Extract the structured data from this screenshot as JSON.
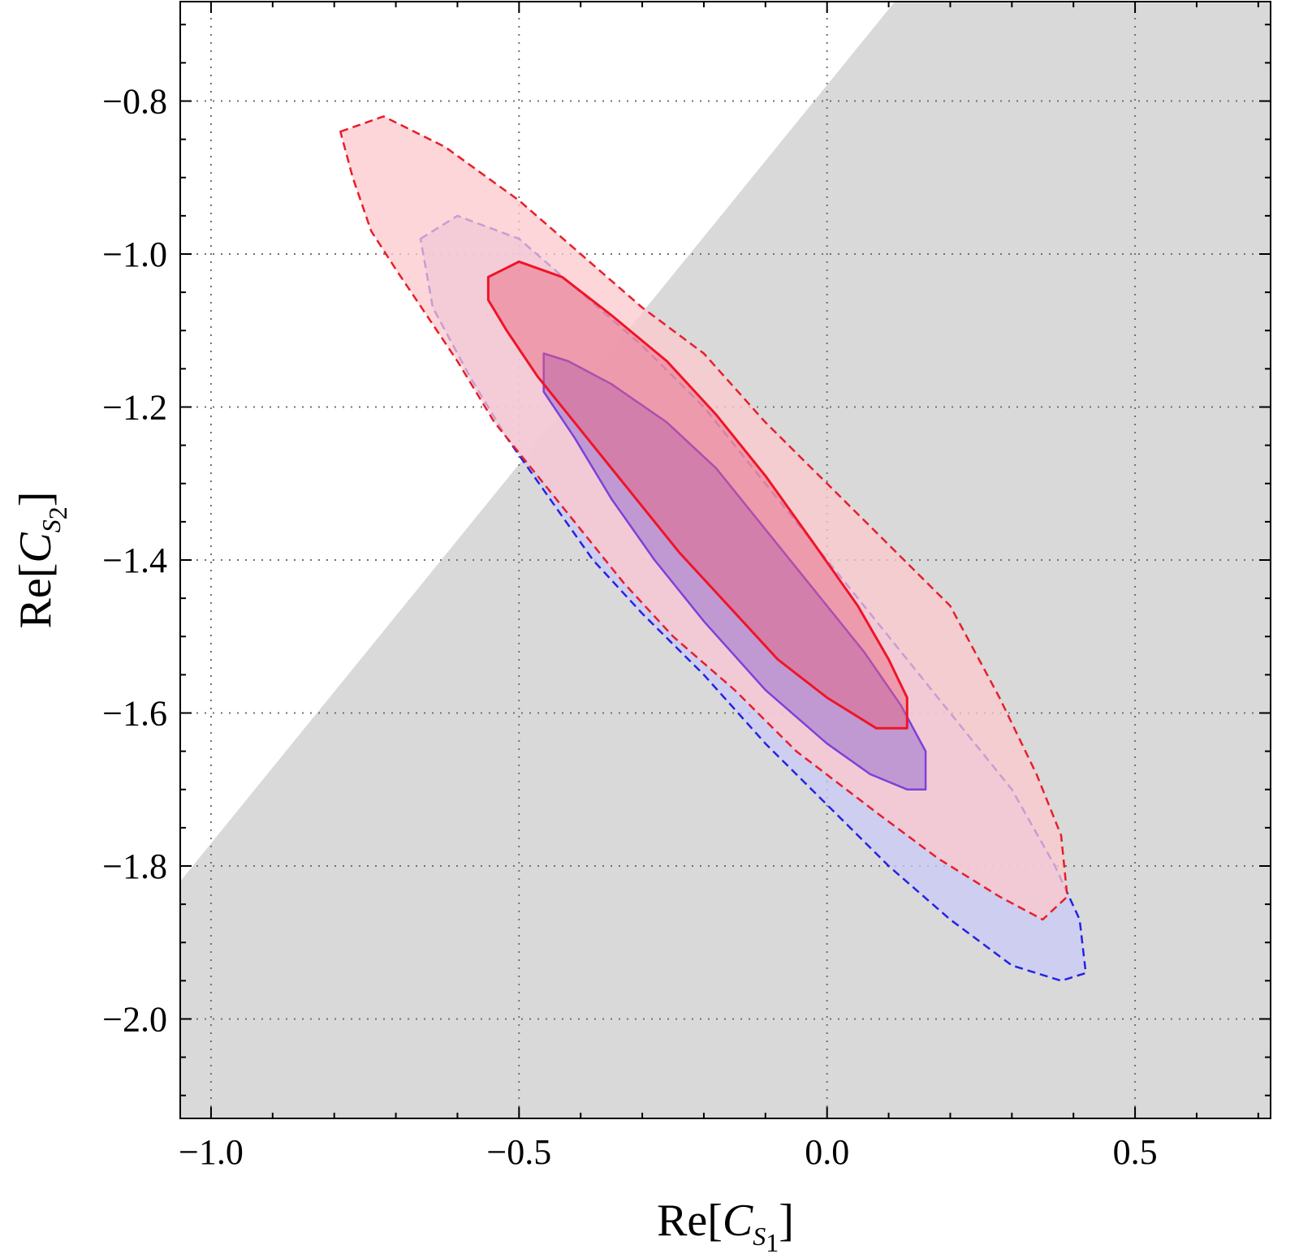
{
  "chart_data": {
    "type": "contour",
    "xlabel": {
      "prefix": "Re[",
      "symbol": "C",
      "sub_letter": "S",
      "sub_index": "1",
      "suffix": "]"
    },
    "ylabel": {
      "prefix": "Re[",
      "symbol": "C",
      "sub_letter": "S",
      "sub_index": "2",
      "suffix": "]"
    },
    "xlim": [
      -1.05,
      0.72
    ],
    "ylim": [
      -2.13,
      -0.67
    ],
    "x_ticks": [
      {
        "value": -1.0,
        "label": "−1.0"
      },
      {
        "value": -0.5,
        "label": "−0.5"
      },
      {
        "value": 0.0,
        "label": "0.0"
      },
      {
        "value": 0.5,
        "label": "0.5"
      }
    ],
    "y_ticks": [
      {
        "value": -0.8,
        "label": "−0.8"
      },
      {
        "value": -1.0,
        "label": "−1.0"
      },
      {
        "value": -1.2,
        "label": "−1.2"
      },
      {
        "value": -1.4,
        "label": "−1.4"
      },
      {
        "value": -1.6,
        "label": "−1.6"
      },
      {
        "value": -1.8,
        "label": "−1.8"
      },
      {
        "value": -2.0,
        "label": "−2.0"
      }
    ],
    "grid": true,
    "excluded_region": {
      "color": "#d9d9d9",
      "points": [
        [
          -1.05,
          -1.82
        ],
        [
          0.11,
          -0.67
        ],
        [
          0.72,
          -0.67
        ],
        [
          0.72,
          -2.13
        ],
        [
          -1.05,
          -2.13
        ]
      ]
    },
    "regions": [
      {
        "id": "blue-outer",
        "fill": "#c9c9f7",
        "fill_opacity": 0.75,
        "stroke": "#2323e6",
        "dash": true,
        "stroke_width": 2.5,
        "points": [
          [
            -0.66,
            -0.98
          ],
          [
            -0.6,
            -0.95
          ],
          [
            -0.5,
            -0.98
          ],
          [
            -0.4,
            -1.05
          ],
          [
            -0.3,
            -1.12
          ],
          [
            -0.2,
            -1.2
          ],
          [
            -0.1,
            -1.3
          ],
          [
            0.0,
            -1.4
          ],
          [
            0.1,
            -1.5
          ],
          [
            0.2,
            -1.6
          ],
          [
            0.3,
            -1.7
          ],
          [
            0.37,
            -1.8
          ],
          [
            0.41,
            -1.87
          ],
          [
            0.42,
            -1.94
          ],
          [
            0.38,
            -1.95
          ],
          [
            0.3,
            -1.93
          ],
          [
            0.2,
            -1.87
          ],
          [
            0.1,
            -1.8
          ],
          [
            0.0,
            -1.72
          ],
          [
            -0.1,
            -1.64
          ],
          [
            -0.2,
            -1.55
          ],
          [
            -0.3,
            -1.47
          ],
          [
            -0.38,
            -1.4
          ],
          [
            -0.45,
            -1.32
          ],
          [
            -0.52,
            -1.24
          ],
          [
            -0.58,
            -1.16
          ],
          [
            -0.64,
            -1.07
          ]
        ]
      },
      {
        "id": "red-outer",
        "fill": "#fcc8cc",
        "fill_opacity": 0.75,
        "stroke": "#e81e2a",
        "dash": true,
        "stroke_width": 2.5,
        "points": [
          [
            -0.79,
            -0.84
          ],
          [
            -0.72,
            -0.82
          ],
          [
            -0.62,
            -0.86
          ],
          [
            -0.5,
            -0.93
          ],
          [
            -0.4,
            -1.0
          ],
          [
            -0.3,
            -1.07
          ],
          [
            -0.2,
            -1.13
          ],
          [
            -0.1,
            -1.22
          ],
          [
            0.0,
            -1.3
          ],
          [
            0.1,
            -1.38
          ],
          [
            0.2,
            -1.46
          ],
          [
            0.28,
            -1.58
          ],
          [
            0.34,
            -1.68
          ],
          [
            0.38,
            -1.76
          ],
          [
            0.39,
            -1.84
          ],
          [
            0.35,
            -1.87
          ],
          [
            0.28,
            -1.84
          ],
          [
            0.18,
            -1.79
          ],
          [
            0.08,
            -1.73
          ],
          [
            -0.05,
            -1.65
          ],
          [
            -0.15,
            -1.57
          ],
          [
            -0.25,
            -1.5
          ],
          [
            -0.33,
            -1.43
          ],
          [
            -0.4,
            -1.36
          ],
          [
            -0.47,
            -1.29
          ],
          [
            -0.54,
            -1.22
          ],
          [
            -0.6,
            -1.14
          ],
          [
            -0.65,
            -1.08
          ],
          [
            -0.7,
            -1.02
          ],
          [
            -0.74,
            -0.97
          ],
          [
            -0.77,
            -0.9
          ]
        ]
      },
      {
        "id": "purple-inner",
        "fill": "#a078d2",
        "fill_opacity": 0.6,
        "stroke": "#8040d8",
        "dash": false,
        "stroke_width": 2.5,
        "points": [
          [
            -0.46,
            -1.13
          ],
          [
            -0.42,
            -1.14
          ],
          [
            -0.35,
            -1.17
          ],
          [
            -0.26,
            -1.22
          ],
          [
            -0.18,
            -1.28
          ],
          [
            -0.1,
            -1.36
          ],
          [
            -0.02,
            -1.44
          ],
          [
            0.06,
            -1.52
          ],
          [
            0.12,
            -1.59
          ],
          [
            0.16,
            -1.65
          ],
          [
            0.16,
            -1.7
          ],
          [
            0.13,
            -1.7
          ],
          [
            0.07,
            -1.68
          ],
          [
            0.0,
            -1.64
          ],
          [
            -0.1,
            -1.57
          ],
          [
            -0.2,
            -1.48
          ],
          [
            -0.28,
            -1.4
          ],
          [
            -0.35,
            -1.32
          ],
          [
            -0.41,
            -1.24
          ],
          [
            -0.46,
            -1.18
          ]
        ]
      },
      {
        "id": "red-inner",
        "fill": "#e8607a",
        "fill_opacity": 0.45,
        "stroke": "#f01428",
        "dash": false,
        "stroke_width": 3,
        "points": [
          [
            -0.55,
            -1.03
          ],
          [
            -0.5,
            -1.01
          ],
          [
            -0.43,
            -1.03
          ],
          [
            -0.35,
            -1.08
          ],
          [
            -0.26,
            -1.14
          ],
          [
            -0.18,
            -1.21
          ],
          [
            -0.1,
            -1.29
          ],
          [
            -0.02,
            -1.38
          ],
          [
            0.05,
            -1.46
          ],
          [
            0.1,
            -1.53
          ],
          [
            0.13,
            -1.58
          ],
          [
            0.13,
            -1.62
          ],
          [
            0.08,
            -1.62
          ],
          [
            0.0,
            -1.58
          ],
          [
            -0.08,
            -1.53
          ],
          [
            -0.16,
            -1.46
          ],
          [
            -0.24,
            -1.39
          ],
          [
            -0.32,
            -1.31
          ],
          [
            -0.4,
            -1.23
          ],
          [
            -0.47,
            -1.16
          ],
          [
            -0.52,
            -1.1
          ],
          [
            -0.55,
            -1.06
          ]
        ]
      }
    ]
  }
}
